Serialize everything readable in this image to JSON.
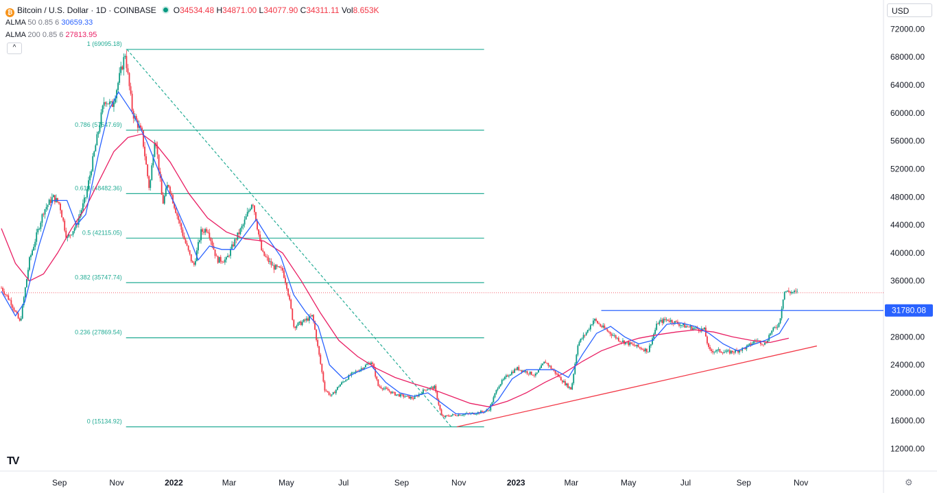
{
  "header": {
    "symbol_title": "Bitcoin / U.S. Dollar · 1D · COINBASE",
    "btc_glyph": "₿",
    "open_label": "O",
    "open": "34534.48",
    "high_label": "H",
    "high": "34871.00",
    "low_label": "L",
    "low": "34077.90",
    "close_label": "C",
    "close": "34311.11",
    "vol_label": "Vol",
    "vol": "8.653K",
    "alma50_label": "ALMA",
    "alma50_params": "50 0.85 6",
    "alma50_value": "30659.33",
    "alma200_label": "ALMA",
    "alma200_params": "200 0.85 6",
    "alma200_value": "27813.95",
    "collapse_glyph": "^"
  },
  "currency": "USD",
  "colors": {
    "candle_up": "#089981",
    "candle_down": "#f23645",
    "alma50": "#2962ff",
    "alma200": "#e91e63",
    "fib": "#22ab94",
    "support": "#f23645",
    "resistance": "#2962ff",
    "badge_bg": "#2962ff",
    "legend_alma50": "#2962ff",
    "legend_alma200": "#e91e63"
  },
  "branding": {
    "logo_text": "TV",
    "settings_glyph": "⚙"
  },
  "chart_data": {
    "type": "candlestick",
    "title": "Bitcoin / U.S. Dollar · 1D · COINBASE",
    "ylim": [
      9600,
      74100
    ],
    "y_ticks": [
      "72000.00",
      "68000.00",
      "64000.00",
      "60000.00",
      "56000.00",
      "52000.00",
      "48000.00",
      "44000.00",
      "40000.00",
      "36000.00",
      "28000.00",
      "24000.00",
      "20000.00",
      "16000.00",
      "12000.00"
    ],
    "y_tick_values": [
      72000,
      68000,
      64000,
      60000,
      56000,
      52000,
      48000,
      44000,
      40000,
      36000,
      28000,
      24000,
      20000,
      16000,
      12000
    ],
    "x_ticks": [
      {
        "label": "Sep",
        "day": 62,
        "bold": false
      },
      {
        "label": "Nov",
        "day": 123,
        "bold": false
      },
      {
        "label": "2022",
        "day": 184,
        "bold": true
      },
      {
        "label": "Mar",
        "day": 243,
        "bold": false
      },
      {
        "label": "May",
        "day": 304,
        "bold": false
      },
      {
        "label": "Jul",
        "day": 365,
        "bold": false
      },
      {
        "label": "Sep",
        "day": 427,
        "bold": false
      },
      {
        "label": "Nov",
        "day": 488,
        "bold": false
      },
      {
        "label": "2023",
        "day": 549,
        "bold": true
      },
      {
        "label": "Mar",
        "day": 608,
        "bold": false
      },
      {
        "label": "May",
        "day": 669,
        "bold": false
      },
      {
        "label": "Jul",
        "day": 730,
        "bold": false
      },
      {
        "label": "Sep",
        "day": 792,
        "bold": false
      },
      {
        "label": "Nov",
        "day": 853,
        "bold": false
      }
    ],
    "x_unit": "days since 2021-07-01",
    "last_day": 850,
    "price_path": [
      [
        0,
        35000
      ],
      [
        10,
        33000
      ],
      [
        20,
        30000
      ],
      [
        30,
        39000
      ],
      [
        45,
        46000
      ],
      [
        55,
        48000
      ],
      [
        62,
        47000
      ],
      [
        70,
        42000
      ],
      [
        80,
        44000
      ],
      [
        90,
        48000
      ],
      [
        100,
        55000
      ],
      [
        110,
        62000
      ],
      [
        118,
        61000
      ],
      [
        123,
        63500
      ],
      [
        132,
        68500
      ],
      [
        140,
        60000
      ],
      [
        150,
        57000
      ],
      [
        158,
        49000
      ],
      [
        164,
        57000
      ],
      [
        172,
        47000
      ],
      [
        178,
        50000
      ],
      [
        184,
        47000
      ],
      [
        195,
        42000
      ],
      [
        205,
        38000
      ],
      [
        213,
        43000
      ],
      [
        220,
        43500
      ],
      [
        230,
        39000
      ],
      [
        240,
        39000
      ],
      [
        250,
        42000
      ],
      [
        258,
        44000
      ],
      [
        268,
        47500
      ],
      [
        278,
        40000
      ],
      [
        290,
        38000
      ],
      [
        300,
        37500
      ],
      [
        305,
        35000
      ],
      [
        312,
        29500
      ],
      [
        320,
        30000
      ],
      [
        332,
        31000
      ],
      [
        345,
        20500
      ],
      [
        352,
        19500
      ],
      [
        360,
        21000
      ],
      [
        372,
        22500
      ],
      [
        384,
        23500
      ],
      [
        395,
        24500
      ],
      [
        402,
        21000
      ],
      [
        410,
        20500
      ],
      [
        420,
        19800
      ],
      [
        430,
        19500
      ],
      [
        440,
        19200
      ],
      [
        452,
        20500
      ],
      [
        462,
        20800
      ],
      [
        470,
        16500
      ],
      [
        480,
        16800
      ],
      [
        490,
        16900
      ],
      [
        500,
        17000
      ],
      [
        510,
        17200
      ],
      [
        520,
        17500
      ],
      [
        530,
        21000
      ],
      [
        540,
        22500
      ],
      [
        550,
        23500
      ],
      [
        560,
        23000
      ],
      [
        570,
        22500
      ],
      [
        580,
        24500
      ],
      [
        590,
        23000
      ],
      [
        600,
        21500
      ],
      [
        608,
        20500
      ],
      [
        615,
        27000
      ],
      [
        625,
        28800
      ],
      [
        632,
        30500
      ],
      [
        640,
        29500
      ],
      [
        650,
        28500
      ],
      [
        660,
        27500
      ],
      [
        670,
        27000
      ],
      [
        680,
        26500
      ],
      [
        690,
        26000
      ],
      [
        700,
        30000
      ],
      [
        710,
        30500
      ],
      [
        720,
        30000
      ],
      [
        730,
        29500
      ],
      [
        740,
        29200
      ],
      [
        750,
        29000
      ],
      [
        755,
        26000
      ],
      [
        765,
        26000
      ],
      [
        775,
        25800
      ],
      [
        785,
        26000
      ],
      [
        795,
        26500
      ],
      [
        805,
        27500
      ],
      [
        815,
        27000
      ],
      [
        820,
        28500
      ],
      [
        830,
        30000
      ],
      [
        835,
        34500
      ],
      [
        850,
        34311
      ]
    ],
    "series": [
      {
        "name": "ALMA 50 0.85 6",
        "current": 30659.33,
        "values": [
          [
            0,
            34500
          ],
          [
            15,
            31000
          ],
          [
            25,
            33000
          ],
          [
            40,
            41000
          ],
          [
            55,
            47500
          ],
          [
            70,
            47500
          ],
          [
            80,
            44000
          ],
          [
            90,
            45500
          ],
          [
            105,
            55000
          ],
          [
            115,
            60500
          ],
          [
            125,
            63000
          ],
          [
            140,
            60000
          ],
          [
            155,
            56000
          ],
          [
            170,
            51000
          ],
          [
            185,
            47000
          ],
          [
            198,
            43000
          ],
          [
            210,
            39000
          ],
          [
            222,
            41000
          ],
          [
            235,
            40500
          ],
          [
            248,
            40500
          ],
          [
            262,
            43000
          ],
          [
            272,
            44800
          ],
          [
            285,
            42000
          ],
          [
            298,
            39500
          ],
          [
            312,
            34000
          ],
          [
            325,
            31500
          ],
          [
            338,
            29500
          ],
          [
            350,
            24000
          ],
          [
            365,
            22000
          ],
          [
            380,
            23000
          ],
          [
            395,
            23800
          ],
          [
            410,
            21500
          ],
          [
            425,
            20000
          ],
          [
            440,
            19500
          ],
          [
            455,
            20000
          ],
          [
            470,
            18500
          ],
          [
            485,
            17000
          ],
          [
            500,
            17000
          ],
          [
            515,
            17200
          ],
          [
            530,
            19000
          ],
          [
            545,
            22000
          ],
          [
            560,
            23300
          ],
          [
            575,
            23300
          ],
          [
            590,
            23300
          ],
          [
            605,
            22200
          ],
          [
            620,
            25500
          ],
          [
            635,
            28500
          ],
          [
            650,
            29500
          ],
          [
            665,
            28000
          ],
          [
            680,
            27000
          ],
          [
            695,
            27500
          ],
          [
            710,
            29800
          ],
          [
            725,
            30000
          ],
          [
            740,
            29500
          ],
          [
            755,
            28500
          ],
          [
            770,
            27000
          ],
          [
            785,
            26000
          ],
          [
            800,
            26800
          ],
          [
            815,
            27500
          ],
          [
            830,
            28500
          ],
          [
            840,
            30659
          ]
        ]
      },
      {
        "name": "ALMA 200 0.85 6",
        "current": 27813.95,
        "values": [
          [
            0,
            43500
          ],
          [
            15,
            38500
          ],
          [
            30,
            36000
          ],
          [
            45,
            37000
          ],
          [
            60,
            40000
          ],
          [
            75,
            43500
          ],
          [
            90,
            46500
          ],
          [
            105,
            50500
          ],
          [
            120,
            54500
          ],
          [
            135,
            56500
          ],
          [
            150,
            57000
          ],
          [
            165,
            55500
          ],
          [
            180,
            53000
          ],
          [
            200,
            48500
          ],
          [
            220,
            45000
          ],
          [
            240,
            43000
          ],
          [
            260,
            42000
          ],
          [
            280,
            41700
          ],
          [
            300,
            40000
          ],
          [
            320,
            36000
          ],
          [
            340,
            31500
          ],
          [
            360,
            27500
          ],
          [
            380,
            25200
          ],
          [
            400,
            23500
          ],
          [
            420,
            22200
          ],
          [
            440,
            21300
          ],
          [
            460,
            20500
          ],
          [
            480,
            19500
          ],
          [
            500,
            18500
          ],
          [
            520,
            18000
          ],
          [
            540,
            18800
          ],
          [
            560,
            20000
          ],
          [
            580,
            21500
          ],
          [
            600,
            22800
          ],
          [
            620,
            24500
          ],
          [
            640,
            26000
          ],
          [
            660,
            27000
          ],
          [
            680,
            27800
          ],
          [
            700,
            28300
          ],
          [
            720,
            28700
          ],
          [
            740,
            29000
          ],
          [
            760,
            28700
          ],
          [
            780,
            28000
          ],
          [
            800,
            27500
          ],
          [
            820,
            27200
          ],
          [
            840,
            27814
          ]
        ]
      }
    ],
    "fibonacci": [
      {
        "ratio": "1",
        "price": 69095.18,
        "label": "1 (69095.18)"
      },
      {
        "ratio": "0.786",
        "price": 57547.69,
        "label": "0.786 (57547.69)"
      },
      {
        "ratio": "0.618",
        "price": 48482.36,
        "label": "0.618 (48482.36)"
      },
      {
        "ratio": "0.5",
        "price": 42115.05,
        "label": "0.5 (42115.05)"
      },
      {
        "ratio": "0.382",
        "price": 35747.74,
        "label": "0.382 (35747.74)"
      },
      {
        "ratio": "0.236",
        "price": 27869.54,
        "label": "0.236 (27869.54)"
      },
      {
        "ratio": "0",
        "price": 15134.92,
        "label": "0 (15134.92)"
      }
    ],
    "fib_start_day": 133,
    "fib_end_day": 515,
    "trend_diagonal": {
      "from": [
        134,
        69095
      ],
      "to": [
        480,
        15135
      ]
    },
    "support_line": {
      "from": [
        486,
        15134
      ],
      "to": [
        870,
        26700
      ]
    },
    "resistance": {
      "price": 31780.08,
      "from_day": 640,
      "label": "31780.08"
    },
    "last_price_line": 34311.11
  }
}
